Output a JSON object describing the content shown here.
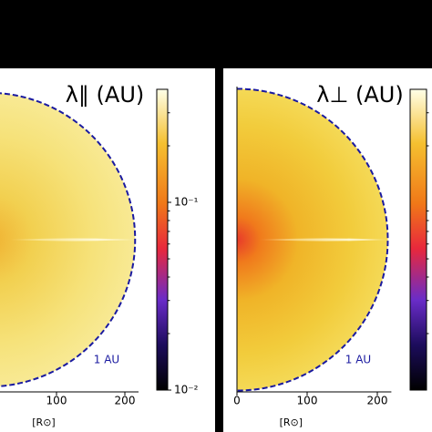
{
  "chart_data": [
    {
      "type": "heatmap",
      "title": "λ∥ (AU)",
      "xlabel": "[R⊙]",
      "annotation": "1 AU",
      "xlim": [
        0,
        220
      ],
      "xticks": [
        100,
        200
      ],
      "boundary_radius": 215,
      "colorbar": {
        "clim": [
          0.01,
          0.4
        ],
        "log_scale": true,
        "ticks": [
          {
            "value": 0.1,
            "label": "10⁻¹"
          },
          {
            "value": 0.01,
            "label": "10⁻²"
          }
        ]
      }
    },
    {
      "type": "heatmap",
      "title": "λ⊥ (AU)",
      "xlabel": "[R⊙]",
      "annotation": "1 AU",
      "xlim": [
        0,
        220
      ],
      "xticks": [
        0,
        100,
        200
      ],
      "boundary_radius": 215,
      "colorbar": {
        "clim": [
          0.01,
          0.4
        ],
        "log_scale": true
      }
    }
  ]
}
